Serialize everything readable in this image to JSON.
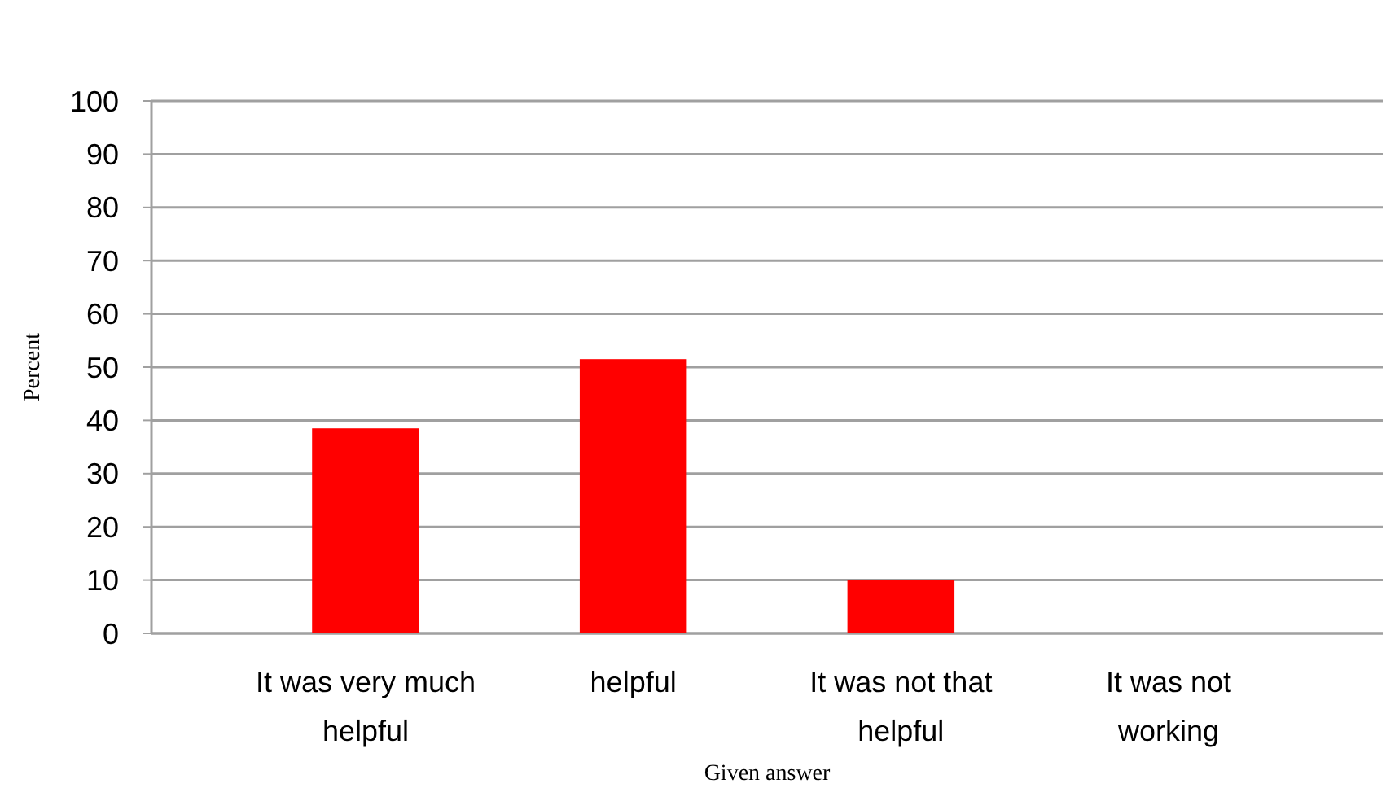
{
  "chart_data": {
    "type": "bar",
    "xlabel": "Given answer",
    "ylabel": "Percent",
    "categories": [
      "It was very much helpful",
      "helpful",
      "It was not that helpful",
      "It was not working"
    ],
    "values": [
      38.5,
      51.5,
      10,
      0
    ],
    "color": "#ff0000",
    "ylim": [
      0,
      100
    ],
    "yticks": [
      0,
      10,
      20,
      30,
      40,
      50,
      60,
      70,
      80,
      90,
      100
    ],
    "grid": "y"
  }
}
